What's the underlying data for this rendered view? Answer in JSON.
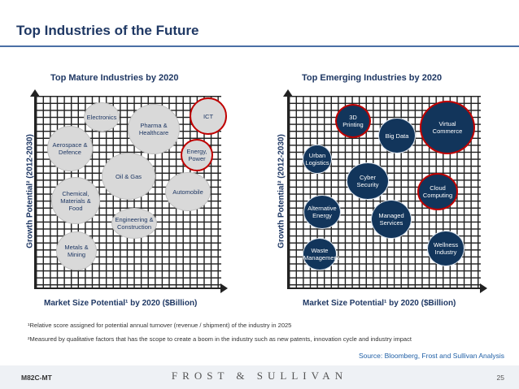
{
  "slide": {
    "title": "Top Industries of the Future",
    "page_number": "25",
    "code": "M82C-MT",
    "brand": "FROST & SULLIVAN"
  },
  "mature": {
    "title": "Top Mature Industries by 2020",
    "x_label": "Market Size Potential¹ by 2020 ($Billion)",
    "y_label": "Growth Potential² (2012-2030)",
    "bubbles": {
      "electronics": "Electronics",
      "pharma": "Pharma & Healthcare",
      "ict": "ICT",
      "aerospace": "Aerospace & Defence",
      "energy": "Energy, Power",
      "oil_gas": "Oil & Gas",
      "chemical": "Chemical, Materials & Food",
      "automobile": "Automobile",
      "engineering": "Engineering & Construction",
      "metals": "Metals & Mining"
    }
  },
  "emerging": {
    "title": "Top Emerging Industries by 2020",
    "x_label": "Market Size Potential¹ by 2020 ($Billion)",
    "y_label": "Growth Potential² (2012-2030)",
    "bubbles": {
      "printing3d": "3D Printing",
      "big_data": "Big Data",
      "virtual_commerce": "Virtual Commerce",
      "urban_logistics": "Urban Logistics",
      "cyber_security": "Cyber Security",
      "cloud_computing": "Cloud Computing",
      "alternative_energy": "Alternative Energy",
      "managed_services": "Managed Services",
      "wellness_industry": "Wellness Industry",
      "waste_management": "Waste Management"
    }
  },
  "footnotes": {
    "note1": "¹Relative score assigned for potential annual turnover (revenue / shipment) of the industry in 2025",
    "note2": "²Measured by qualitative factors that has the scope to create a boom in the industry such as new patents, innovation   cycle and industry impact"
  },
  "source": "Source: Bloomberg, Frost and Sullivan Analysis",
  "colors": {
    "title": "#1f3864",
    "emerging_fill": "#12355b",
    "mature_fill": "#d9d9d9",
    "highlight_border": "#c00000",
    "source_link": "#1f5fa6"
  }
}
